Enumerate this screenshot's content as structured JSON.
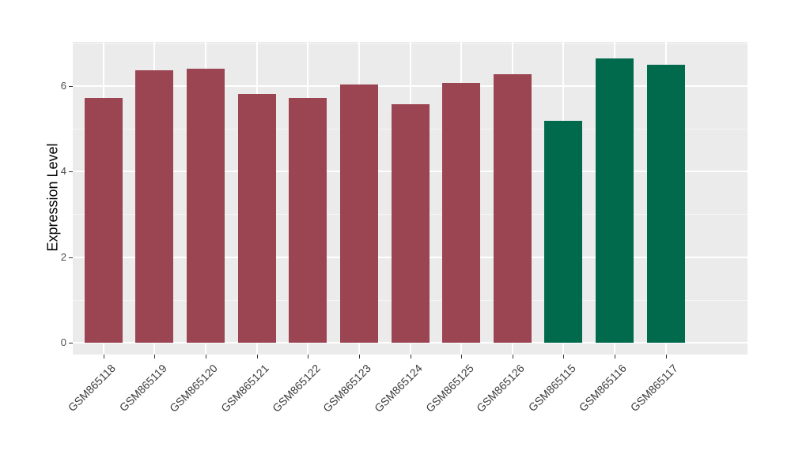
{
  "chart_data": {
    "type": "bar",
    "title": "",
    "ylabel": "Expression Level",
    "xlabel": "",
    "categories": [
      "GSM865118",
      "GSM865119",
      "GSM865120",
      "GSM865121",
      "GSM865122",
      "GSM865123",
      "GSM865124",
      "GSM865125",
      "GSM865126",
      "GSM865115",
      "GSM865116",
      "GSM865117"
    ],
    "values": [
      5.73,
      6.37,
      6.41,
      5.81,
      5.72,
      6.03,
      5.58,
      6.07,
      6.28,
      5.19,
      6.65,
      6.5
    ],
    "groups": [
      "red",
      "red",
      "red",
      "red",
      "red",
      "red",
      "red",
      "red",
      "red",
      "green",
      "green",
      "green"
    ],
    "group_colors": {
      "red": "#9B4452",
      "green": "#016A4D"
    },
    "ytick_labels": [
      "0",
      "2",
      "4",
      "6"
    ],
    "ytick_values": [
      0,
      2,
      4,
      6
    ],
    "minor_tick_values": [
      1,
      3,
      5,
      7
    ],
    "ylim": [
      0,
      7.03
    ],
    "legend_position": "none",
    "grid": "on",
    "panel_bg": "#EBEBEB",
    "major_grid_color": "#FFFFFF",
    "minor_grid_color": "#F5F5F5",
    "axis_text_color": "#4D4D4D",
    "x_axis_text_color": "#3D3D3D",
    "tick_mark_color": "#333333",
    "axis_title_color": "#000000"
  }
}
